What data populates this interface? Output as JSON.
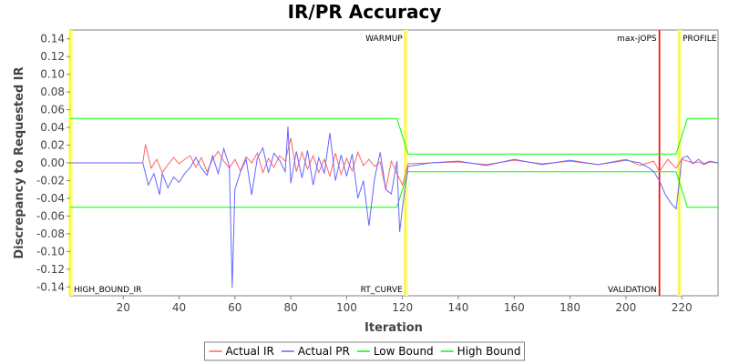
{
  "chart_data": {
    "type": "line",
    "title": "IR/PR Accuracy",
    "xlabel": "Iteration",
    "ylabel": "Discrepancy to Requested IR",
    "xlim": [
      1,
      233
    ],
    "ylim": [
      -0.15,
      0.15
    ],
    "x_ticks": [
      20,
      40,
      60,
      80,
      100,
      120,
      140,
      160,
      180,
      200,
      220
    ],
    "y_ticks": [
      -0.14,
      -0.12,
      -0.1,
      -0.08,
      -0.06,
      -0.04,
      -0.02,
      0.0,
      0.02,
      0.04,
      0.06,
      0.08,
      0.1,
      0.12,
      0.14
    ],
    "y_tick_labels": [
      "-0.14",
      "-0.12",
      "-0.10",
      "-0.08",
      "-0.06",
      "-0.04",
      "-0.02",
      "0.00",
      "0.02",
      "0.04",
      "0.06",
      "0.08",
      "0.10",
      "0.12",
      "0.14"
    ],
    "grid": false,
    "legend_position": "bottom",
    "markers": [
      {
        "label": "HIGH_BOUND_IR",
        "x": 1,
        "color": "#ffff00",
        "label_position": "bottom-right"
      },
      {
        "label": "WARMUP",
        "x": 121,
        "color": "#ffff00",
        "label_position": "top-left"
      },
      {
        "label": "RT_CURVE",
        "x": 121,
        "color": "#ffff00",
        "label_position": "bottom-left"
      },
      {
        "label": "max-jOPS",
        "x": 212,
        "color": "#ff0000",
        "label_position": "top-left"
      },
      {
        "label": "VALIDATION",
        "x": 212,
        "color": "#ff0000",
        "label_position": "bottom-left"
      },
      {
        "label": "PROFILE",
        "x": 219,
        "color": "#ffff00",
        "label_position": "top-right"
      }
    ],
    "series": [
      {
        "name": "Actual IR",
        "color": "#ff6666",
        "x": [
          1,
          27,
          28,
          30,
          32,
          34,
          36,
          38,
          40,
          42,
          44,
          46,
          48,
          50,
          52,
          54,
          56,
          58,
          60,
          62,
          64,
          66,
          68,
          70,
          72,
          74,
          76,
          78,
          80,
          82,
          84,
          86,
          88,
          90,
          92,
          94,
          96,
          98,
          100,
          102,
          104,
          106,
          108,
          110,
          112,
          114,
          116,
          118,
          120,
          122,
          130,
          140,
          150,
          160,
          170,
          180,
          190,
          200,
          205,
          210,
          212,
          215,
          218,
          220,
          222,
          224,
          226,
          228,
          230,
          233
        ],
        "y": [
          0.0,
          0.0,
          0.021,
          -0.006,
          0.004,
          -0.011,
          -0.002,
          0.006,
          -0.001,
          0.004,
          0.008,
          -0.005,
          0.006,
          -0.01,
          0.004,
          0.013,
          0.002,
          -0.006,
          0.004,
          -0.009,
          0.007,
          0.0,
          0.011,
          -0.011,
          0.005,
          -0.005,
          0.008,
          0.002,
          0.028,
          -0.01,
          0.012,
          -0.007,
          0.008,
          -0.011,
          0.004,
          -0.015,
          0.011,
          -0.013,
          0.005,
          -0.009,
          0.012,
          -0.003,
          0.004,
          -0.004,
          0.001,
          -0.03,
          0.002,
          -0.012,
          -0.025,
          -0.001,
          0.0,
          0.001,
          -0.002,
          0.003,
          -0.001,
          0.002,
          -0.002,
          0.004,
          -0.003,
          0.002,
          -0.01,
          0.004,
          -0.006,
          0.004,
          0.002,
          0.0,
          0.001,
          -0.002,
          0.001,
          0.0
        ]
      },
      {
        "name": "Actual PR",
        "color": "#6666ff",
        "x": [
          1,
          27,
          29,
          31,
          33,
          34,
          36,
          38,
          40,
          42,
          44,
          46,
          48,
          50,
          52,
          54,
          56,
          58,
          59,
          60,
          62,
          64,
          66,
          68,
          70,
          72,
          74,
          76,
          78,
          79,
          80,
          82,
          84,
          86,
          88,
          90,
          92,
          94,
          96,
          98,
          100,
          102,
          104,
          106,
          108,
          110,
          112,
          114,
          116,
          118,
          119,
          120,
          122,
          130,
          140,
          150,
          160,
          170,
          180,
          190,
          200,
          205,
          208,
          210,
          212,
          214,
          216,
          218,
          219,
          220,
          222,
          224,
          226,
          228,
          230,
          233
        ],
        "y": [
          0.0,
          0.0,
          -0.025,
          -0.012,
          -0.036,
          -0.012,
          -0.028,
          -0.016,
          -0.022,
          -0.012,
          -0.005,
          0.006,
          -0.006,
          -0.014,
          0.008,
          -0.012,
          0.016,
          -0.004,
          -0.141,
          -0.03,
          -0.01,
          0.004,
          -0.036,
          0.005,
          0.017,
          -0.011,
          0.011,
          0.003,
          -0.01,
          0.041,
          -0.023,
          0.013,
          -0.017,
          0.014,
          -0.025,
          0.006,
          -0.012,
          0.034,
          -0.02,
          0.009,
          -0.015,
          0.01,
          -0.04,
          -0.02,
          -0.071,
          -0.018,
          0.012,
          -0.03,
          -0.035,
          0.002,
          -0.078,
          -0.05,
          -0.004,
          0.0,
          0.002,
          -0.003,
          0.004,
          -0.002,
          0.003,
          -0.002,
          0.003,
          0.0,
          -0.005,
          -0.01,
          -0.02,
          -0.035,
          -0.045,
          -0.052,
          -0.025,
          0.005,
          0.008,
          -0.001,
          0.004,
          -0.001,
          0.002,
          0.0
        ]
      },
      {
        "name": "Low Bound",
        "color": "#00ff00",
        "x": [
          1,
          118,
          122,
          218,
          222,
          233
        ],
        "y": [
          -0.05,
          -0.05,
          -0.01,
          -0.01,
          -0.05,
          -0.05
        ]
      },
      {
        "name": "High Bound",
        "color": "#00ff00",
        "x": [
          1,
          118,
          122,
          218,
          222,
          233
        ],
        "y": [
          0.05,
          0.05,
          0.01,
          0.01,
          0.05,
          0.05
        ]
      }
    ]
  }
}
